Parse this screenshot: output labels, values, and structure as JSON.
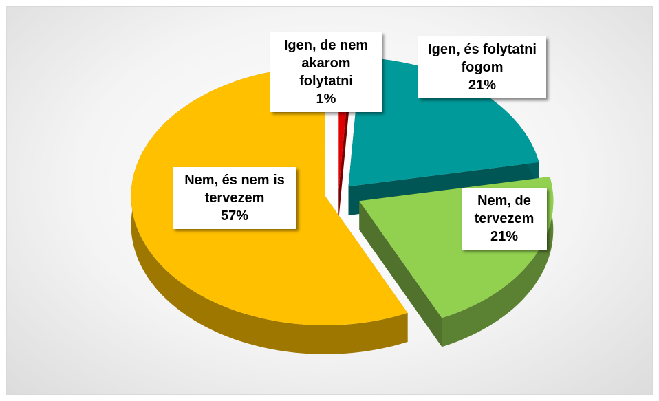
{
  "chart_data": {
    "type": "pie",
    "categories": [
      "Igen, de nem akarom folytatni",
      "Igen, és folytatni fogom",
      "Nem, de tervezem",
      "Nem, és nem is tervezem"
    ],
    "values": [
      1,
      21,
      21,
      57
    ],
    "value_labels": [
      "1%",
      "21%",
      "21%",
      "57%"
    ],
    "colors": [
      "#e00000",
      "#009a9a",
      "#92d050",
      "#ffc000"
    ]
  }
}
